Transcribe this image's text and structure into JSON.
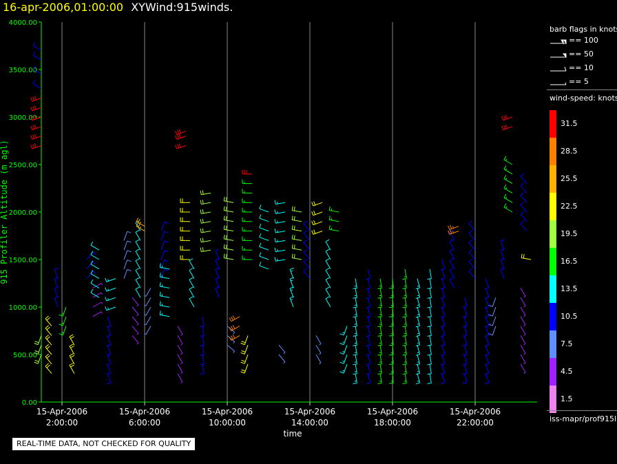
{
  "header": {
    "date": "16-apr-2006,01:00:00",
    "title": "XYWind:915winds."
  },
  "footer": {
    "quality_note": "REAL-TIME DATA, NOT CHECKED FOR QUALITY",
    "source": "iss-mapr/prof915l"
  },
  "legend": {
    "barb_heading": "barb flags in knots",
    "barbs": [
      {
        "label": "== 100",
        "knots": 100
      },
      {
        "label": "== 50",
        "knots": 50
      },
      {
        "label": "== 10",
        "knots": 10
      },
      {
        "label": "== 5",
        "knots": 5
      }
    ],
    "speed_heading": "wind-speed: knots",
    "speed_scale": [
      {
        "label": "31.5",
        "color": "#ff0000"
      },
      {
        "label": "28.5",
        "color": "#ff8000"
      },
      {
        "label": "25.5",
        "color": "#ffb000"
      },
      {
        "label": "22.5",
        "color": "#ffff00"
      },
      {
        "label": "19.5",
        "color": "#a0ff40"
      },
      {
        "label": "16.5",
        "color": "#00ff00"
      },
      {
        "label": "13.5",
        "color": "#00ffff"
      },
      {
        "label": "10.5",
        "color": "#0000ff"
      },
      {
        "label": "7.5",
        "color": "#6090ff"
      },
      {
        "label": "4.5",
        "color": "#a020ff"
      },
      {
        "label": "1.5",
        "color": "#ee82ee"
      }
    ]
  },
  "chart_data": {
    "type": "scatter",
    "subtype": "wind-barbs",
    "xlabel": "time",
    "ylabel": "915 Profiler Altitude (m agl)",
    "ylim": [
      0,
      4000
    ],
    "yticks": [
      "0.00",
      "500.00",
      "1000.00",
      "1500.00",
      "2000.00",
      "2500.00",
      "3000.00",
      "3500.00",
      "4000.00"
    ],
    "xticks": [
      {
        "date": "15-Apr-2006",
        "time": "2:00:00",
        "hour": 2
      },
      {
        "date": "15-Apr-2006",
        "time": "6:00:00",
        "hour": 6
      },
      {
        "date": "15-Apr-2006",
        "time": "10:00:00",
        "hour": 10
      },
      {
        "date": "15-Apr-2006",
        "time": "14:00:00",
        "hour": 14
      },
      {
        "date": "15-Apr-2006",
        "time": "18:00:00",
        "hour": 18
      },
      {
        "date": "15-Apr-2006",
        "time": "22:00:00",
        "hour": 22
      }
    ],
    "xlim_hours": [
      1.0,
      25.0
    ],
    "vertical_grid": true,
    "axis_color": "#00ff00",
    "series": [
      {
        "hour": 1.0,
        "alts": [
          2700,
          2800,
          2900,
          3000,
          3100,
          3200
        ],
        "speed": 30,
        "dir": 250
      },
      {
        "hour": 1.0,
        "alts": [
          3300,
          3450,
          3600,
          3700
        ],
        "speed": 10,
        "dir": 300
      },
      {
        "hour": 1.0,
        "alts": [
          500,
          600,
          700
        ],
        "speed": 18,
        "dir": 200
      },
      {
        "hour": 1.5,
        "alts": [
          300,
          400,
          500,
          600,
          700,
          800
        ],
        "speed": 22,
        "dir": 320
      },
      {
        "hour": 1.8,
        "alts": [
          1000,
          1100,
          1200,
          1300
        ],
        "speed": 10,
        "dir": 340
      },
      {
        "hour": 2.2,
        "alts": [
          800,
          900,
          1000
        ],
        "speed": 16,
        "dir": 200
      },
      {
        "hour": 2.6,
        "alts": [
          300,
          400,
          500,
          600
        ],
        "speed": 22,
        "dir": 330
      },
      {
        "hour": 3.2,
        "alts": [
          1300,
          1400,
          1500
        ],
        "speed": 10,
        "dir": 40
      },
      {
        "hour": 3.5,
        "alts": [
          900,
          1000,
          1100,
          1200
        ],
        "speed": 5,
        "dir": 60
      },
      {
        "hour": 3.8,
        "alts": [
          1100,
          1200,
          1300,
          1400,
          1500,
          1600
        ],
        "speed": 12,
        "dir": 300
      },
      {
        "hour": 4.2,
        "alts": [
          300,
          400,
          500,
          600,
          700,
          800,
          900
        ],
        "speed": 10,
        "dir": 160
      },
      {
        "hour": 4.6,
        "alts": [
          1000,
          1100,
          1200,
          1300
        ],
        "speed": 14,
        "dir": 250
      },
      {
        "hour": 5.0,
        "alts": [
          1300,
          1400,
          1500,
          1600,
          1700
        ],
        "speed": 8,
        "dir": 20
      },
      {
        "hour": 5.4,
        "alts": [
          700,
          800,
          900,
          1000,
          1100
        ],
        "speed": 5,
        "dir": 140
      },
      {
        "hour": 5.8,
        "alts": [
          1100,
          1200,
          1300,
          1400,
          1500,
          1600,
          1700,
          1800
        ],
        "speed": 12,
        "dir": 330
      },
      {
        "hour": 6.0,
        "alts": [
          1800,
          1850
        ],
        "speed": 26,
        "dir": 300
      },
      {
        "hour": 6.3,
        "alts": [
          800,
          900,
          1000,
          1100,
          1200
        ],
        "speed": 6,
        "dir": 210
      },
      {
        "hour": 6.8,
        "alts": [
          1300,
          1400,
          1500,
          1600,
          1700,
          1800
        ],
        "speed": 10,
        "dir": 20
      },
      {
        "hour": 7.2,
        "alts": [
          900,
          1000,
          1100,
          1200,
          1300,
          1400
        ],
        "speed": 14,
        "dir": 280
      },
      {
        "hour": 7.6,
        "alts": [
          300,
          400,
          500,
          600,
          700,
          800
        ],
        "speed": 5,
        "dir": 150
      },
      {
        "hour": 8.0,
        "alts": [
          2700,
          2800,
          2850
        ],
        "speed": 31,
        "dir": 250
      },
      {
        "hour": 8.2,
        "alts": [
          1500,
          1600,
          1700,
          1800,
          1900,
          2000,
          2100
        ],
        "speed": 22,
        "dir": 270
      },
      {
        "hour": 8.4,
        "alts": [
          1000,
          1100,
          1200,
          1300,
          1400
        ],
        "speed": 12,
        "dir": 330
      },
      {
        "hour": 8.8,
        "alts": [
          400,
          500,
          600,
          700,
          800,
          900
        ],
        "speed": 10,
        "dir": 170
      },
      {
        "hour": 9.2,
        "alts": [
          1600,
          1700,
          1800,
          1900,
          2000,
          2100,
          2200
        ],
        "speed": 18,
        "dir": 260
      },
      {
        "hour": 9.6,
        "alts": [
          1100,
          1200,
          1300,
          1400,
          1500
        ],
        "speed": 10,
        "dir": 340
      },
      {
        "hour": 10.0,
        "alts": [
          600,
          700,
          800
        ],
        "speed": 7,
        "dir": 130
      },
      {
        "hour": 10.3,
        "alts": [
          1500,
          1600,
          1700,
          1800,
          1900,
          2000,
          2100
        ],
        "speed": 20,
        "dir": 280
      },
      {
        "hour": 10.6,
        "alts": [
          700,
          800,
          900
        ],
        "speed": 29,
        "dir": 240
      },
      {
        "hour": 11.0,
        "alts": [
          400,
          500,
          600,
          700
        ],
        "speed": 22,
        "dir": 200
      },
      {
        "hour": 11.2,
        "alts": [
          1500,
          1600,
          1700,
          1800,
          1900,
          2000,
          2100,
          2200,
          2300
        ],
        "speed": 16,
        "dir": 270
      },
      {
        "hour": 11.2,
        "alts": [
          2400
        ],
        "speed": 31,
        "dir": 270
      },
      {
        "hour": 12.0,
        "alts": [
          1400,
          1500,
          1600,
          1700,
          1800,
          1900,
          2000
        ],
        "speed": 12,
        "dir": 290
      },
      {
        "hour": 12.5,
        "alts": [
          500,
          600
        ],
        "speed": 7,
        "dir": 140
      },
      {
        "hour": 12.8,
        "alts": [
          1500,
          1600,
          1700,
          1800,
          1900,
          2000,
          2100
        ],
        "speed": 14,
        "dir": 260
      },
      {
        "hour": 13.2,
        "alts": [
          1000,
          1100,
          1200,
          1300
        ],
        "speed": 13,
        "dir": 340
      },
      {
        "hour": 13.6,
        "alts": [
          1500,
          1600,
          1700,
          1800,
          1900,
          2000
        ],
        "speed": 20,
        "dir": 280
      },
      {
        "hour": 14.0,
        "alts": [
          1300,
          1400,
          1500,
          1600,
          1700,
          1800
        ],
        "speed": 10,
        "dir": 320
      },
      {
        "hour": 14.3,
        "alts": [
          500,
          600,
          700
        ],
        "speed": 6,
        "dir": 150
      },
      {
        "hour": 14.6,
        "alts": [
          1800,
          1900,
          2000,
          2100
        ],
        "speed": 22,
        "dir": 250
      },
      {
        "hour": 15.0,
        "alts": [
          1000,
          1100,
          1200,
          1300,
          1400,
          1500,
          1600
        ],
        "speed": 12,
        "dir": 330
      },
      {
        "hour": 15.4,
        "alts": [
          1800,
          1900,
          2000
        ],
        "speed": 15,
        "dir": 280
      },
      {
        "hour": 15.8,
        "alts": [
          400,
          500,
          600,
          700,
          800
        ],
        "speed": 14,
        "dir": 200
      },
      {
        "hour": 16.2,
        "alts": [
          300,
          400,
          500,
          600,
          700,
          800,
          900,
          1000,
          1100,
          1200,
          1300
        ],
        "speed": 13,
        "dir": 170
      },
      {
        "hour": 16.8,
        "alts": [
          300,
          400,
          500,
          600,
          700,
          800,
          900,
          1000,
          1100,
          1200,
          1300,
          1400
        ],
        "speed": 10,
        "dir": 165
      },
      {
        "hour": 17.4,
        "alts": [
          300,
          400,
          500,
          600,
          700,
          800,
          900,
          1000,
          1100,
          1200,
          1300
        ],
        "speed": 15,
        "dir": 170
      },
      {
        "hour": 18.0,
        "alts": [
          300,
          400,
          500,
          600,
          700,
          800,
          900,
          1000,
          1100,
          1200,
          1300
        ],
        "speed": 17,
        "dir": 175
      },
      {
        "hour": 18.6,
        "alts": [
          300,
          400,
          500,
          600,
          700,
          800,
          900,
          1000,
          1100,
          1200,
          1300,
          1400
        ],
        "speed": 16,
        "dir": 170
      },
      {
        "hour": 19.2,
        "alts": [
          300,
          400,
          500,
          600,
          700,
          800,
          900,
          1000,
          1100,
          1200,
          1300
        ],
        "speed": 14,
        "dir": 165
      },
      {
        "hour": 19.8,
        "alts": [
          300,
          400,
          500,
          600,
          700,
          800,
          900,
          1000,
          1100,
          1200,
          1300,
          1400
        ],
        "speed": 12,
        "dir": 170
      },
      {
        "hour": 20.4,
        "alts": [
          300,
          400,
          500,
          600,
          700,
          800,
          900,
          1000,
          1100,
          1200,
          1300,
          1400,
          1500
        ],
        "speed": 11,
        "dir": 165
      },
      {
        "hour": 21.0,
        "alts": [
          1200,
          1300,
          1400,
          1500,
          1600,
          1700
        ],
        "speed": 10,
        "dir": 330
      },
      {
        "hour": 21.2,
        "alts": [
          1800,
          1850
        ],
        "speed": 27,
        "dir": 250
      },
      {
        "hour": 21.5,
        "alts": [
          300,
          400,
          500,
          600,
          700,
          800,
          900,
          1000,
          1100
        ],
        "speed": 11,
        "dir": 170
      },
      {
        "hour": 22.0,
        "alts": [
          1300,
          1400,
          1500,
          1600,
          1700,
          1800
        ],
        "speed": 9,
        "dir": 320
      },
      {
        "hour": 22.5,
        "alts": [
          300,
          400,
          500,
          600,
          700,
          800,
          900,
          1000,
          1100,
          1200,
          1300
        ],
        "speed": 10,
        "dir": 160
      },
      {
        "hour": 23.0,
        "alts": [
          800,
          900,
          1000,
          1100
        ],
        "speed": 8,
        "dir": 200
      },
      {
        "hour": 23.4,
        "alts": [
          1300,
          1400,
          1500,
          1600
        ],
        "speed": 10,
        "dir": 340
      },
      {
        "hour": 23.8,
        "alts": [
          2900,
          3000
        ],
        "speed": 31,
        "dir": 250
      },
      {
        "hour": 23.8,
        "alts": [
          2000,
          2100,
          2200,
          2300,
          2400,
          2500
        ],
        "speed": 16,
        "dir": 300
      },
      {
        "hour": 24.2,
        "alts": [
          400,
          500,
          600,
          700,
          800,
          900,
          1000,
          1100,
          1200
        ],
        "speed": 4,
        "dir": 150
      },
      {
        "hour": 24.5,
        "alts": [
          1800,
          1900,
          2000,
          2100,
          2200,
          2300
        ],
        "speed": 10,
        "dir": 320
      },
      {
        "hour": 24.7,
        "alts": [
          1500
        ],
        "speed": 22,
        "dir": 280
      }
    ]
  }
}
